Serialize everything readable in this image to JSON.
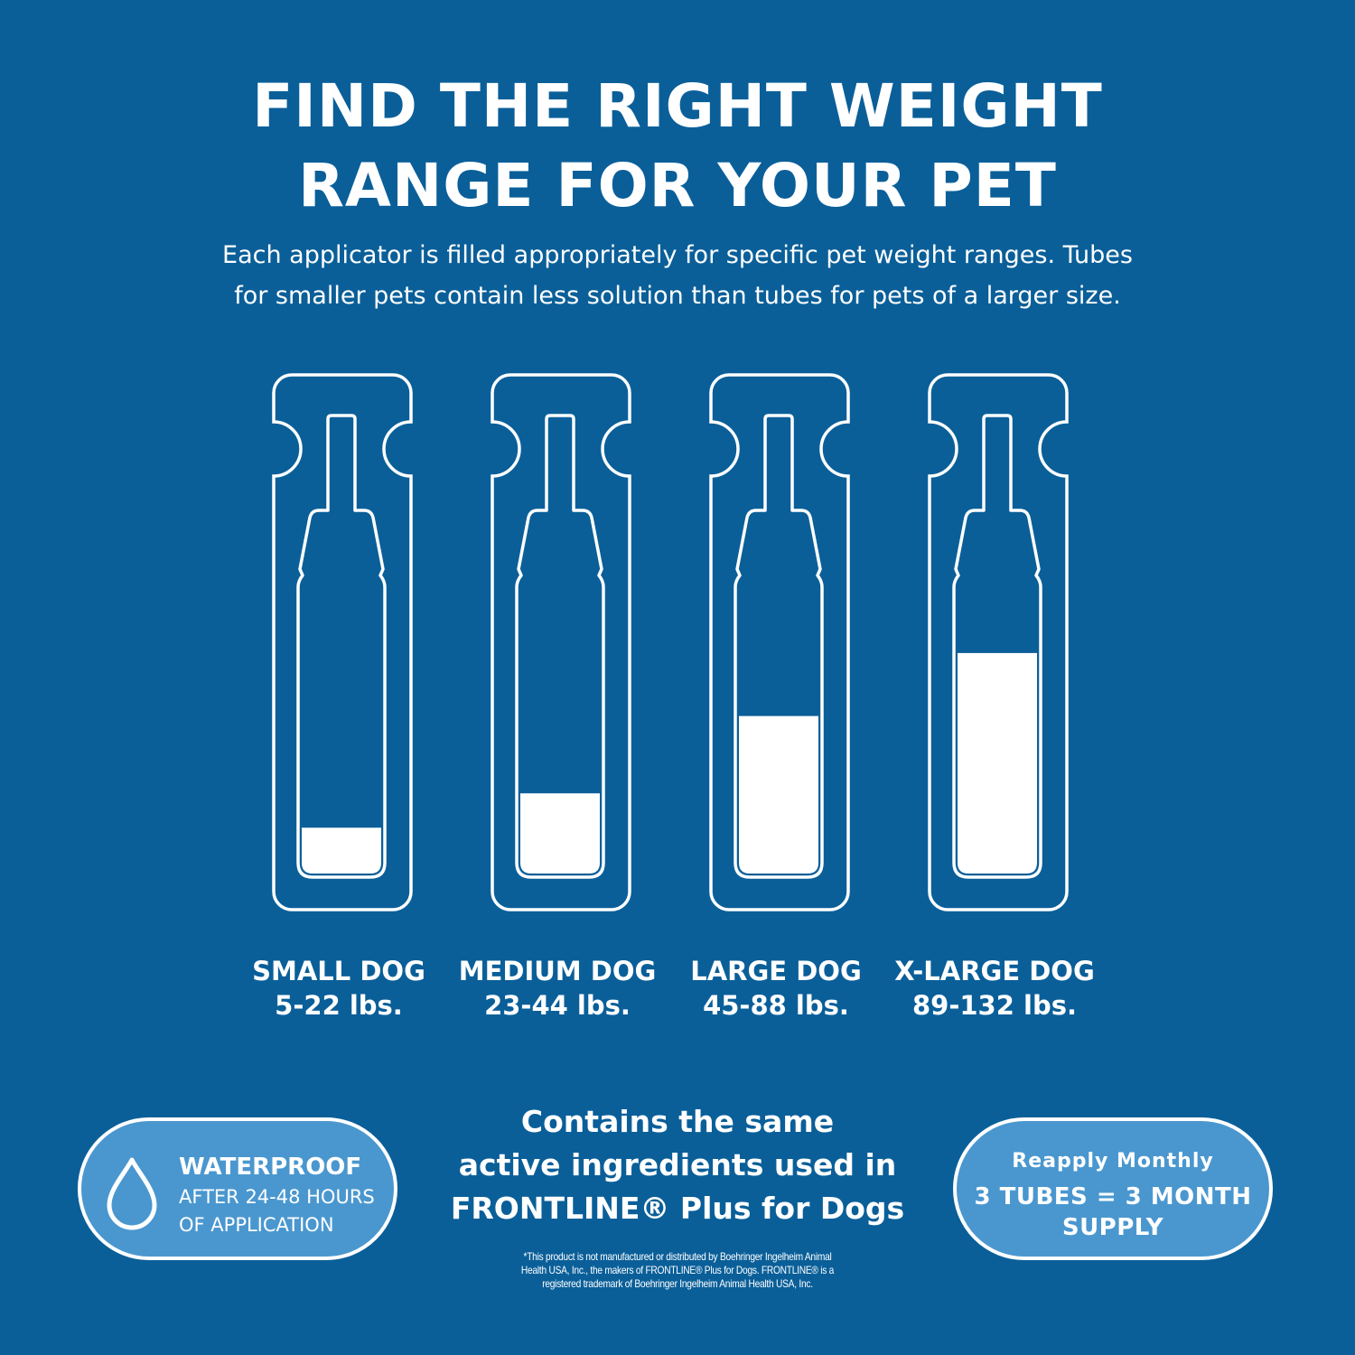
{
  "header": {
    "title_line1": "FIND THE RIGHT WEIGHT",
    "title_line2": "RANGE FOR YOUR PET",
    "subtitle_line1": "Each applicator is filled appropriately for specific pet weight ranges. Tubes",
    "subtitle_line2": "for smaller pets contain less solution than tubes for pets of a larger size."
  },
  "tubes": [
    {
      "name": "SMALL DOG",
      "range": "5-22 lbs.",
      "fill_fraction": 0.16
    },
    {
      "name": "MEDIUM DOG",
      "range": "23-44 lbs.",
      "fill_fraction": 0.28
    },
    {
      "name": "LARGE DOG",
      "range": "45-88 lbs.",
      "fill_fraction": 0.55
    },
    {
      "name": "X-LARGE DOG",
      "range": "89-132 lbs.",
      "fill_fraction": 0.77
    }
  ],
  "waterproof": {
    "icon": "water-drop-icon",
    "heading": "WATERPROOF",
    "line1": "AFTER 24-48 HOURS",
    "line2": "OF APPLICATION"
  },
  "center": {
    "line1": "Contains the same",
    "line2": "active ingredients used in",
    "line3": "FRONTLINE® Plus for Dogs",
    "disclaimer_line1": "*This product is not manufactured or distributed by Boehringer Ingelheim Animal",
    "disclaimer_line2": "Health USA, Inc., the makers of FRONTLINE® Plus for Dogs. FRONTLINE® is a",
    "disclaimer_line3": "registered trademark of Boehringer Ingelheim Animal Health USA, Inc."
  },
  "reapply": {
    "heading": "Reapply Monthly",
    "line1": "3 TUBES = 3 MONTH",
    "line2": "SUPPLY"
  },
  "colors": {
    "background": "#0a5f99",
    "pill": "#4a97cf",
    "foreground": "#ffffff"
  }
}
